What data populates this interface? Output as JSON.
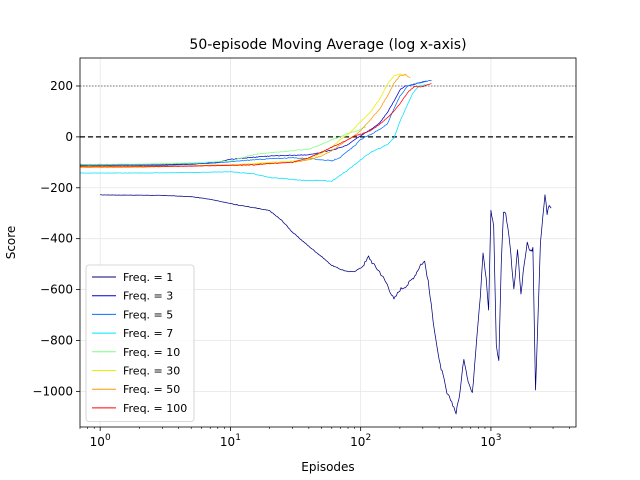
{
  "chart_data": {
    "type": "line",
    "title": "50-episode Moving Average (log x-axis)",
    "xlabel": "Episodes",
    "ylabel": "Score",
    "xscale": "log",
    "xlim": [
      0.7,
      4500
    ],
    "ylim": [
      -1140,
      310
    ],
    "x_ticks": [
      {
        "value": 1,
        "base": "10",
        "exp": "0"
      },
      {
        "value": 10,
        "base": "10",
        "exp": "1"
      },
      {
        "value": 100,
        "base": "10",
        "exp": "2"
      },
      {
        "value": 1000,
        "base": "10",
        "exp": "3"
      }
    ],
    "y_ticks": [
      {
        "value": 200,
        "label": "200"
      },
      {
        "value": 0,
        "label": "0"
      },
      {
        "value": -200,
        "label": "−200"
      },
      {
        "value": -400,
        "label": "−400"
      },
      {
        "value": -600,
        "label": "−600"
      },
      {
        "value": -800,
        "label": "−800"
      },
      {
        "value": -1000,
        "label": "−1000"
      }
    ],
    "grid": true,
    "legend_position": "lower-left",
    "reference_lines": [
      {
        "y": 200,
        "style": "dotted"
      },
      {
        "y": 0,
        "style": "dashed"
      }
    ],
    "series": [
      {
        "name": "Freq. = 1",
        "color": "#00007f",
        "points": [
          [
            1,
            -228
          ],
          [
            2,
            -229
          ],
          [
            3,
            -230
          ],
          [
            5,
            -235
          ],
          [
            7,
            -245
          ],
          [
            10,
            -262
          ],
          [
            15,
            -278
          ],
          [
            20,
            -290
          ],
          [
            25,
            -330
          ],
          [
            30,
            -375
          ],
          [
            40,
            -430
          ],
          [
            50,
            -470
          ],
          [
            60,
            -505
          ],
          [
            70,
            -520
          ],
          [
            80,
            -530
          ],
          [
            90,
            -528
          ],
          [
            100,
            -515
          ],
          [
            110,
            -490
          ],
          [
            115,
            -470
          ],
          [
            125,
            -500
          ],
          [
            140,
            -530
          ],
          [
            160,
            -580
          ],
          [
            180,
            -640
          ],
          [
            200,
            -600
          ],
          [
            230,
            -580
          ],
          [
            260,
            -545
          ],
          [
            290,
            -500
          ],
          [
            310,
            -490
          ],
          [
            330,
            -570
          ],
          [
            360,
            -720
          ],
          [
            400,
            -880
          ],
          [
            430,
            -940
          ],
          [
            460,
            -1010
          ],
          [
            500,
            -1040
          ],
          [
            540,
            -1085
          ],
          [
            580,
            -1000
          ],
          [
            620,
            -870
          ],
          [
            670,
            -960
          ],
          [
            720,
            -1010
          ],
          [
            780,
            -780
          ],
          [
            830,
            -620
          ],
          [
            870,
            -450
          ],
          [
            920,
            -560
          ],
          [
            960,
            -680
          ],
          [
            1000,
            -290
          ],
          [
            1050,
            -350
          ],
          [
            1100,
            -820
          ],
          [
            1150,
            -880
          ],
          [
            1200,
            -500
          ],
          [
            1250,
            -290
          ],
          [
            1300,
            -300
          ],
          [
            1400,
            -420
          ],
          [
            1500,
            -600
          ],
          [
            1600,
            -440
          ],
          [
            1700,
            -620
          ],
          [
            1800,
            -500
          ],
          [
            1900,
            -420
          ],
          [
            2000,
            -450
          ],
          [
            2100,
            -440
          ],
          [
            2200,
            -1000
          ],
          [
            2300,
            -700
          ],
          [
            2400,
            -420
          ],
          [
            2500,
            -320
          ],
          [
            2600,
            -225
          ],
          [
            2700,
            -300
          ],
          [
            2800,
            -270
          ],
          [
            2900,
            -280
          ]
        ]
      },
      {
        "name": "Freq. = 3",
        "color": "#0000d0",
        "points": [
          [
            0.7,
            -112
          ],
          [
            1,
            -112
          ],
          [
            3,
            -111
          ],
          [
            5,
            -108
          ],
          [
            8,
            -100
          ],
          [
            10,
            -88
          ],
          [
            15,
            -80
          ],
          [
            20,
            -75
          ],
          [
            30,
            -72
          ],
          [
            40,
            -70
          ],
          [
            50,
            -62
          ],
          [
            60,
            -52
          ],
          [
            70,
            -42
          ],
          [
            80,
            -30
          ],
          [
            90,
            -10
          ],
          [
            100,
            5
          ],
          [
            120,
            30
          ],
          [
            140,
            55
          ],
          [
            160,
            95
          ],
          [
            180,
            140
          ],
          [
            200,
            185
          ],
          [
            220,
            200
          ],
          [
            250,
            205
          ],
          [
            280,
            212
          ],
          [
            320,
            220
          ]
        ]
      },
      {
        "name": "Freq. = 5",
        "color": "#0070ff",
        "points": [
          [
            0.7,
            -110
          ],
          [
            2,
            -109
          ],
          [
            4,
            -107
          ],
          [
            7,
            -104
          ],
          [
            10,
            -98
          ],
          [
            15,
            -90
          ],
          [
            20,
            -86
          ],
          [
            30,
            -82
          ],
          [
            40,
            -85
          ],
          [
            50,
            -90
          ],
          [
            60,
            -94
          ],
          [
            70,
            -80
          ],
          [
            80,
            -55
          ],
          [
            90,
            -35
          ],
          [
            100,
            -10
          ],
          [
            120,
            10
          ],
          [
            140,
            30
          ],
          [
            160,
            50
          ],
          [
            180,
            110
          ],
          [
            200,
            160
          ],
          [
            230,
            200
          ],
          [
            270,
            210
          ],
          [
            300,
            215
          ],
          [
            350,
            222
          ]
        ]
      },
      {
        "name": "Freq. = 7",
        "color": "#00e0ff",
        "points": [
          [
            0.7,
            -142
          ],
          [
            2,
            -142
          ],
          [
            5,
            -140
          ],
          [
            8,
            -138
          ],
          [
            10,
            -137
          ],
          [
            15,
            -145
          ],
          [
            20,
            -160
          ],
          [
            25,
            -163
          ],
          [
            30,
            -168
          ],
          [
            40,
            -172
          ],
          [
            50,
            -170
          ],
          [
            60,
            -175
          ],
          [
            70,
            -150
          ],
          [
            80,
            -130
          ],
          [
            100,
            -90
          ],
          [
            120,
            -60
          ],
          [
            140,
            -45
          ],
          [
            160,
            -30
          ],
          [
            180,
            -5
          ],
          [
            200,
            60
          ],
          [
            230,
            130
          ],
          [
            250,
            170
          ],
          [
            280,
            200
          ],
          [
            320,
            205
          ]
        ]
      },
      {
        "name": "Freq. = 10",
        "color": "#7dff7a",
        "points": [
          [
            0.7,
            -108
          ],
          [
            2,
            -107
          ],
          [
            5,
            -102
          ],
          [
            10,
            -95
          ],
          [
            15,
            -70
          ],
          [
            20,
            -62
          ],
          [
            30,
            -55
          ],
          [
            40,
            -48
          ],
          [
            50,
            -30
          ],
          [
            60,
            -10
          ],
          [
            70,
            0
          ],
          [
            80,
            15
          ],
          [
            90,
            20
          ],
          [
            100,
            30
          ],
          [
            110,
            40
          ]
        ]
      },
      {
        "name": "Freq. = 30",
        "color": "#e6f000",
        "points": [
          [
            0.7,
            -120
          ],
          [
            2,
            -119
          ],
          [
            5,
            -114
          ],
          [
            10,
            -110
          ],
          [
            15,
            -105
          ],
          [
            20,
            -100
          ],
          [
            30,
            -95
          ],
          [
            40,
            -85
          ],
          [
            50,
            -65
          ],
          [
            60,
            -40
          ],
          [
            70,
            -10
          ],
          [
            80,
            10
          ],
          [
            90,
            35
          ],
          [
            100,
            60
          ],
          [
            120,
            100
          ],
          [
            140,
            150
          ],
          [
            160,
            205
          ],
          [
            180,
            240
          ],
          [
            200,
            248
          ],
          [
            220,
            240
          ]
        ]
      },
      {
        "name": "Freq. = 50",
        "color": "#ff9800",
        "points": [
          [
            0.7,
            -115
          ],
          [
            2,
            -115
          ],
          [
            5,
            -113
          ],
          [
            10,
            -110
          ],
          [
            15,
            -108
          ],
          [
            20,
            -104
          ],
          [
            30,
            -100
          ],
          [
            40,
            -90
          ],
          [
            50,
            -75
          ],
          [
            60,
            -55
          ],
          [
            70,
            -30
          ],
          [
            80,
            -10
          ],
          [
            90,
            5
          ],
          [
            100,
            25
          ],
          [
            120,
            70
          ],
          [
            140,
            110
          ],
          [
            160,
            160
          ],
          [
            180,
            210
          ],
          [
            200,
            240
          ],
          [
            220,
            245
          ],
          [
            240,
            232
          ]
        ]
      },
      {
        "name": "Freq. = 100",
        "color": "#ff0000",
        "points": [
          [
            0.7,
            -118
          ],
          [
            2,
            -118
          ],
          [
            5,
            -115
          ],
          [
            10,
            -112
          ],
          [
            15,
            -110
          ],
          [
            20,
            -105
          ],
          [
            30,
            -100
          ],
          [
            40,
            -82
          ],
          [
            50,
            -60
          ],
          [
            60,
            -40
          ],
          [
            70,
            -25
          ],
          [
            80,
            -10
          ],
          [
            90,
            5
          ],
          [
            100,
            10
          ],
          [
            120,
            25
          ],
          [
            140,
            50
          ],
          [
            160,
            75
          ],
          [
            180,
            100
          ],
          [
            200,
            130
          ],
          [
            230,
            175
          ],
          [
            260,
            200
          ],
          [
            290,
            195
          ],
          [
            320,
            205
          ],
          [
            350,
            210
          ]
        ]
      }
    ]
  }
}
